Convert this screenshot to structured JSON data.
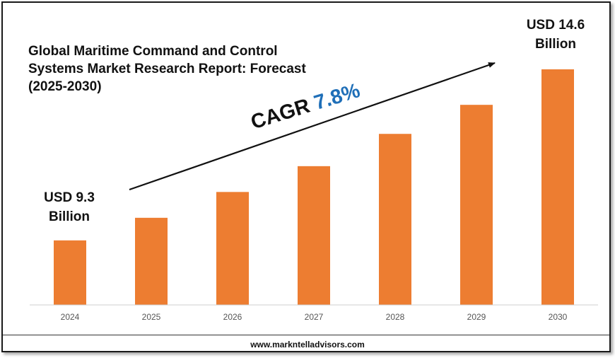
{
  "chart_data": {
    "type": "bar",
    "title": "Global Maritime Command and Control Systems Market Research Report: Forecast (2025-2030)",
    "categories": [
      "2024",
      "2025",
      "2026",
      "2027",
      "2028",
      "2029",
      "2030"
    ],
    "values": [
      9.3,
      10.0,
      10.8,
      11.6,
      12.6,
      13.5,
      14.6
    ],
    "unit": "USD Billion",
    "ylim": [
      7.3,
      14.6
    ],
    "bar_color": "#ed7d31",
    "grid": false,
    "annotations": {
      "start_label": "USD 9.3",
      "start_unit": "Billion",
      "end_label": "USD 14.6",
      "end_unit": "Billion",
      "cagr_label": "CAGR",
      "cagr_value": "7.8%"
    }
  },
  "footer": {
    "website": "www.markntelladvisors.com"
  },
  "colors": {
    "bar": "#ed7d31",
    "cagr_value": "#1f6fb8",
    "text": "#111111"
  }
}
